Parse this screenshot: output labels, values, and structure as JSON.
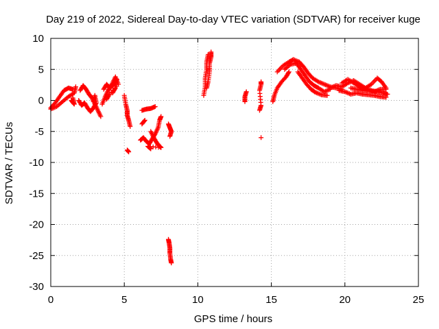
{
  "chart_data": {
    "type": "scatter",
    "title": "Day 219 of 2022, Sidereal Day-to-day VTEC variation (SDTVAR) for receiver kuge",
    "xlabel": "GPS time / hours",
    "ylabel": "SDTVAR / TECUs",
    "xlim": [
      0,
      25
    ],
    "ylim": [
      -30,
      10
    ],
    "x_ticks": [
      0,
      5,
      10,
      15,
      20,
      25
    ],
    "y_ticks": [
      10,
      5,
      0,
      -5,
      -10,
      -15,
      -20,
      -25,
      -30
    ],
    "grid": true,
    "marker": "+",
    "colors": {
      "points": "#ff0000",
      "grid": "#a0a0a0",
      "axes": "#000000"
    },
    "segments": [
      {
        "name": "arc-a1",
        "points": [
          [
            0.0,
            -1.2
          ],
          [
            0.3,
            -0.4
          ],
          [
            0.6,
            0.6
          ],
          [
            0.9,
            1.6
          ],
          [
            1.2,
            2.0
          ],
          [
            1.5,
            1.8
          ]
        ]
      },
      {
        "name": "arc-a2",
        "points": [
          [
            0.0,
            -1.4
          ],
          [
            0.4,
            -1.0
          ],
          [
            0.8,
            -0.2
          ],
          [
            1.2,
            0.6
          ],
          [
            1.6,
            1.2
          ],
          [
            1.7,
            2.2
          ]
        ]
      },
      {
        "name": "arc-a3",
        "points": [
          [
            1.4,
            0.0
          ],
          [
            1.5,
            -0.3
          ],
          [
            1.6,
            -0.6
          ],
          [
            1.5,
            0.4
          ]
        ]
      },
      {
        "name": "arc-b1",
        "points": [
          [
            2.0,
            1.6
          ],
          [
            2.2,
            2.4
          ],
          [
            2.4,
            1.8
          ],
          [
            2.6,
            1.0
          ],
          [
            2.8,
            0.4
          ],
          [
            3.0,
            -0.6
          ],
          [
            3.2,
            -1.6
          ],
          [
            3.4,
            -2.6
          ]
        ]
      },
      {
        "name": "arc-b2",
        "points": [
          [
            1.9,
            0.0
          ],
          [
            2.1,
            -0.8
          ],
          [
            2.3,
            -0.4
          ],
          [
            2.5,
            -1.2
          ],
          [
            2.7,
            -1.8
          ],
          [
            2.9,
            -1.2
          ],
          [
            3.1,
            -0.4
          ],
          [
            3.0,
            0.8
          ],
          [
            2.9,
            -0.2
          ]
        ]
      },
      {
        "name": "arc-c1",
        "points": [
          [
            3.5,
            -0.6
          ],
          [
            3.7,
            0.6
          ],
          [
            3.9,
            1.6
          ],
          [
            4.1,
            2.2
          ],
          [
            4.3,
            2.6
          ],
          [
            4.5,
            3.4
          ],
          [
            4.4,
            2.0
          ],
          [
            4.2,
            1.2
          ]
        ]
      },
      {
        "name": "arc-c2",
        "points": [
          [
            3.6,
            1.8
          ],
          [
            3.8,
            2.6
          ],
          [
            4.0,
            2.0
          ],
          [
            4.2,
            2.8
          ],
          [
            4.4,
            3.8
          ],
          [
            4.6,
            2.6
          ],
          [
            4.0,
            1.0
          ],
          [
            3.8,
            0.2
          ]
        ]
      },
      {
        "name": "arc-d1",
        "points": [
          [
            5.0,
            0.8
          ],
          [
            5.1,
            -0.6
          ],
          [
            5.2,
            -1.6
          ],
          [
            5.2,
            -2.4
          ],
          [
            5.3,
            -3.2
          ],
          [
            5.4,
            -4.2
          ]
        ]
      },
      {
        "name": "arc-d2",
        "points": [
          [
            5.2,
            -8.0
          ],
          [
            5.3,
            -8.3
          ]
        ]
      },
      {
        "name": "arc-e1",
        "points": [
          [
            6.2,
            -1.6
          ],
          [
            6.5,
            -1.4
          ],
          [
            6.8,
            -1.3
          ],
          [
            7.1,
            -1.0
          ]
        ]
      },
      {
        "name": "arc-e2",
        "points": [
          [
            6.2,
            -3.8
          ],
          [
            6.4,
            -3.2
          ]
        ]
      },
      {
        "name": "arc-e3",
        "points": [
          [
            6.1,
            -6.4
          ],
          [
            6.3,
            -6.0
          ],
          [
            6.5,
            -6.6
          ],
          [
            6.7,
            -7.0
          ],
          [
            6.9,
            -6.2
          ],
          [
            7.1,
            -5.4
          ],
          [
            7.3,
            -4.4
          ],
          [
            7.4,
            -3.2
          ],
          [
            7.5,
            -2.6
          ]
        ]
      },
      {
        "name": "arc-e4",
        "points": [
          [
            6.8,
            -5.0
          ],
          [
            7.0,
            -6.0
          ],
          [
            7.2,
            -6.8
          ],
          [
            7.4,
            -7.4
          ],
          [
            7.5,
            -7.6
          ],
          [
            6.6,
            -7.4
          ],
          [
            6.8,
            -7.8
          ]
        ]
      },
      {
        "name": "arc-f1",
        "points": [
          [
            8.0,
            -3.8
          ],
          [
            8.1,
            -4.4
          ],
          [
            8.2,
            -5.0
          ],
          [
            8.1,
            -5.8
          ]
        ]
      },
      {
        "name": "arc-f2",
        "points": [
          [
            8.0,
            -22.4
          ],
          [
            8.05,
            -23.0
          ],
          [
            8.1,
            -23.8
          ],
          [
            8.1,
            -24.6
          ],
          [
            8.15,
            -25.6
          ],
          [
            8.2,
            -26.2
          ]
        ]
      },
      {
        "name": "arc-g1",
        "points": [
          [
            10.4,
            0.8
          ],
          [
            10.5,
            2.2
          ],
          [
            10.5,
            3.6
          ],
          [
            10.6,
            5.0
          ],
          [
            10.6,
            6.2
          ],
          [
            10.7,
            7.4
          ]
        ]
      },
      {
        "name": "arc-g2",
        "points": [
          [
            10.6,
            2.0
          ],
          [
            10.7,
            3.0
          ],
          [
            10.8,
            4.6
          ],
          [
            10.8,
            6.0
          ],
          [
            10.9,
            7.0
          ],
          [
            10.9,
            7.8
          ]
        ]
      },
      {
        "name": "arc-h1",
        "points": [
          [
            13.2,
            -0.2
          ],
          [
            13.2,
            0.6
          ],
          [
            13.3,
            1.4
          ]
        ]
      },
      {
        "name": "arc-h2",
        "points": [
          [
            14.2,
            -1.6
          ],
          [
            14.3,
            -0.8
          ],
          [
            14.2,
            1.6
          ],
          [
            14.3,
            2.6
          ],
          [
            14.3,
            3.0
          ]
        ]
      },
      {
        "name": "arc-h3",
        "points": [
          [
            14.3,
            -6.0
          ]
        ]
      },
      {
        "name": "arc-i1",
        "points": [
          [
            15.1,
            -0.2
          ],
          [
            15.2,
            0.8
          ],
          [
            15.4,
            2.0
          ],
          [
            15.7,
            3.0
          ],
          [
            16.0,
            3.8
          ],
          [
            16.2,
            4.6
          ]
        ]
      },
      {
        "name": "arc-i2",
        "points": [
          [
            15.4,
            4.6
          ],
          [
            15.8,
            5.6
          ],
          [
            16.2,
            6.2
          ],
          [
            16.5,
            6.6
          ],
          [
            16.9,
            6.2
          ],
          [
            17.2,
            5.4
          ],
          [
            17.5,
            4.4
          ],
          [
            17.8,
            3.6
          ],
          [
            18.2,
            3.0
          ],
          [
            18.6,
            2.6
          ],
          [
            19.0,
            2.2
          ],
          [
            19.4,
            2.0
          ],
          [
            19.8,
            1.8
          ]
        ]
      },
      {
        "name": "arc-i3",
        "points": [
          [
            15.9,
            5.0
          ],
          [
            16.3,
            5.8
          ],
          [
            16.7,
            6.0
          ],
          [
            17.0,
            5.0
          ],
          [
            17.3,
            4.0
          ],
          [
            17.6,
            3.0
          ],
          [
            17.9,
            2.4
          ],
          [
            18.2,
            2.0
          ],
          [
            18.6,
            1.4
          ],
          [
            19.0,
            1.8
          ]
        ]
      },
      {
        "name": "arc-i4",
        "points": [
          [
            16.8,
            4.6
          ],
          [
            17.1,
            3.6
          ],
          [
            17.4,
            2.6
          ],
          [
            17.7,
            1.8
          ],
          [
            18.0,
            1.3
          ],
          [
            18.4,
            0.9
          ],
          [
            18.8,
            0.8
          ]
        ]
      },
      {
        "name": "arc-j1",
        "points": [
          [
            19.0,
            2.0
          ],
          [
            19.4,
            2.4
          ],
          [
            19.8,
            2.2
          ],
          [
            20.2,
            2.8
          ],
          [
            20.6,
            3.2
          ],
          [
            21.0,
            2.6
          ],
          [
            21.4,
            2.0
          ],
          [
            21.8,
            1.6
          ],
          [
            22.2,
            1.4
          ],
          [
            22.6,
            1.2
          ],
          [
            22.9,
            1.0
          ]
        ]
      },
      {
        "name": "arc-j2",
        "points": [
          [
            19.6,
            1.6
          ],
          [
            20.0,
            1.4
          ],
          [
            20.4,
            1.0
          ],
          [
            20.8,
            1.2
          ],
          [
            21.2,
            1.0
          ],
          [
            21.6,
            0.9
          ],
          [
            22.0,
            0.8
          ],
          [
            22.4,
            0.6
          ],
          [
            22.8,
            0.5
          ]
        ]
      },
      {
        "name": "arc-j3",
        "points": [
          [
            19.8,
            2.8
          ],
          [
            20.2,
            3.4
          ],
          [
            20.6,
            2.8
          ],
          [
            21.0,
            2.2
          ],
          [
            21.4,
            2.0
          ],
          [
            21.8,
            2.6
          ],
          [
            22.2,
            3.6
          ],
          [
            22.5,
            3.0
          ],
          [
            22.8,
            2.0
          ]
        ]
      },
      {
        "name": "arc-j4",
        "points": [
          [
            20.4,
            2.0
          ],
          [
            20.8,
            1.8
          ],
          [
            21.2,
            1.6
          ],
          [
            21.6,
            1.5
          ],
          [
            22.0,
            1.4
          ],
          [
            22.4,
            1.8
          ],
          [
            22.8,
            1.8
          ]
        ]
      }
    ]
  }
}
